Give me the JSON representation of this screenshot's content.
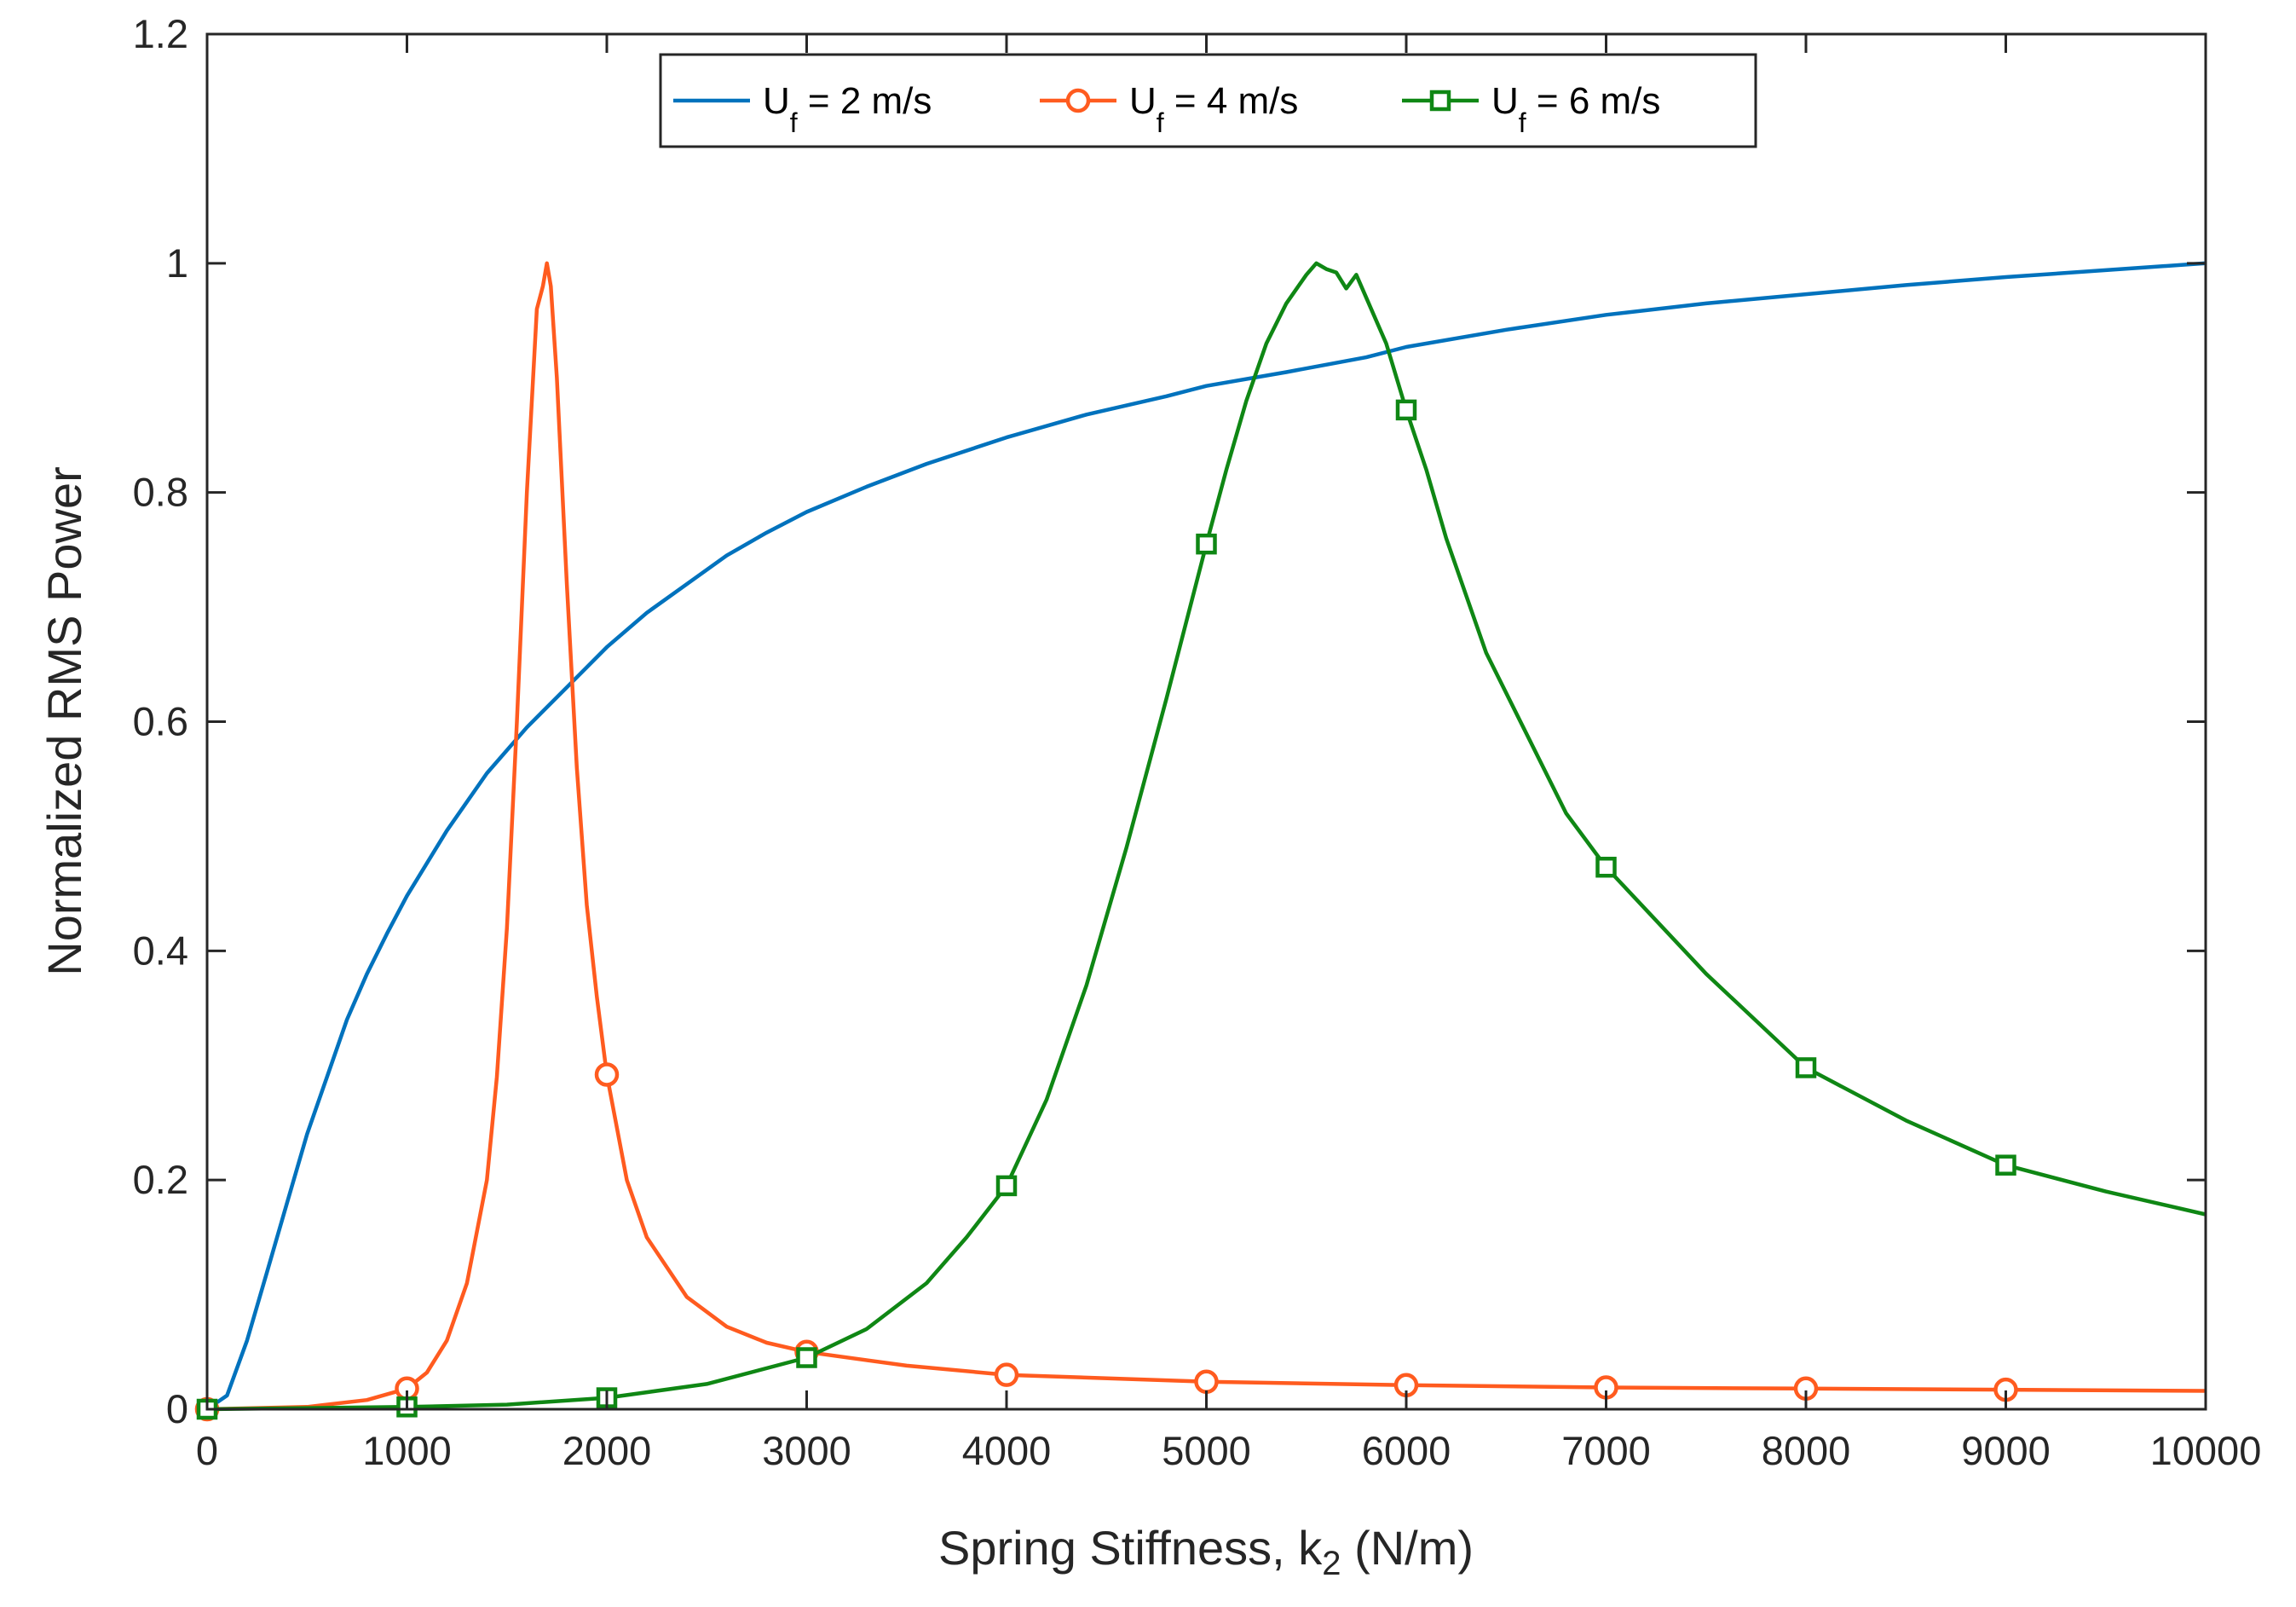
{
  "chart_data": {
    "type": "line",
    "title": "",
    "xlabel": "Spring Stiffness, k",
    "xlabel_sub": "2",
    "xlabel_tail": " (N/m)",
    "ylabel": "Normalized RMS Power",
    "xlim": [
      0,
      10000
    ],
    "ylim": [
      0,
      1.2
    ],
    "xticks": [
      0,
      1000,
      2000,
      3000,
      4000,
      5000,
      6000,
      7000,
      8000,
      9000,
      10000
    ],
    "xtick_labels": [
      "0",
      "1000",
      "2000",
      "3000",
      "4000",
      "5000",
      "6000",
      "7000",
      "8000",
      "9000",
      "10000"
    ],
    "yticks": [
      0,
      0.2,
      0.4,
      0.6,
      0.8,
      1.0,
      1.2
    ],
    "ytick_labels": [
      "0",
      "0.2",
      "0.4",
      "0.6",
      "0.8",
      "1",
      "1.2"
    ],
    "grid": false,
    "legend_position": "top-center",
    "series": [
      {
        "name": "U_f = 2 m/s",
        "legend_main": "U",
        "legend_sub": "f",
        "legend_tail": " = 2 m/s",
        "color": "#0072BD",
        "marker": "none",
        "x": [
          0,
          100,
          200,
          300,
          400,
          500,
          600,
          700,
          800,
          900,
          1000,
          1200,
          1400,
          1600,
          1800,
          2000,
          2200,
          2400,
          2600,
          2800,
          3000,
          3300,
          3600,
          4000,
          4400,
          4800,
          5000,
          5400,
          5800,
          6000,
          6500,
          7000,
          7500,
          8000,
          8500,
          9000,
          9500,
          10000
        ],
        "y": [
          0,
          0.012,
          0.06,
          0.12,
          0.18,
          0.24,
          0.29,
          0.34,
          0.38,
          0.415,
          0.448,
          0.505,
          0.555,
          0.595,
          0.63,
          0.665,
          0.695,
          0.72,
          0.745,
          0.765,
          0.783,
          0.805,
          0.825,
          0.848,
          0.868,
          0.884,
          0.893,
          0.905,
          0.918,
          0.927,
          0.942,
          0.955,
          0.965,
          0.973,
          0.981,
          0.988,
          0.994,
          1.0
        ]
      },
      {
        "name": "U_f = 4 m/s",
        "legend_main": "U",
        "legend_sub": "f",
        "legend_tail": " = 4 m/s",
        "color": "#FF5B1F",
        "marker": "circle",
        "x": [
          0,
          500,
          800,
          1000,
          1100,
          1200,
          1300,
          1400,
          1450,
          1500,
          1550,
          1600,
          1650,
          1680,
          1700,
          1720,
          1750,
          1800,
          1850,
          1900,
          1950,
          2000,
          2100,
          2200,
          2400,
          2600,
          2800,
          3000,
          3500,
          4000,
          5000,
          6000,
          7000,
          8000,
          9000,
          10000
        ],
        "y": [
          0,
          0.002,
          0.008,
          0.018,
          0.032,
          0.06,
          0.11,
          0.2,
          0.29,
          0.42,
          0.6,
          0.8,
          0.96,
          0.98,
          1.0,
          0.98,
          0.9,
          0.72,
          0.56,
          0.44,
          0.36,
          0.292,
          0.2,
          0.15,
          0.098,
          0.072,
          0.058,
          0.05,
          0.038,
          0.03,
          0.024,
          0.021,
          0.019,
          0.018,
          0.017,
          0.016
        ],
        "marker_x": [
          0,
          1000,
          2000,
          3000,
          4000,
          5000,
          6000,
          7000,
          8000,
          9000
        ],
        "marker_y": [
          0,
          0.018,
          0.292,
          0.05,
          0.03,
          0.024,
          0.021,
          0.019,
          0.018,
          0.017
        ]
      },
      {
        "name": "U_f = 6 m/s",
        "legend_main": "U",
        "legend_sub": "f",
        "legend_tail": " = 6 m/s",
        "color": "#0F8714",
        "marker": "square",
        "x": [
          0,
          1000,
          1500,
          2000,
          2500,
          3000,
          3300,
          3600,
          3800,
          4000,
          4200,
          4400,
          4600,
          4800,
          5000,
          5100,
          5200,
          5300,
          5400,
          5500,
          5550,
          5600,
          5650,
          5700,
          5750,
          5800,
          5900,
          6000,
          6100,
          6200,
          6400,
          6600,
          6800,
          7000,
          7500,
          8000,
          8500,
          9000,
          9500,
          10000
        ],
        "y": [
          0,
          0.002,
          0.004,
          0.01,
          0.022,
          0.045,
          0.07,
          0.11,
          0.15,
          0.195,
          0.27,
          0.37,
          0.49,
          0.62,
          0.755,
          0.82,
          0.88,
          0.93,
          0.965,
          0.99,
          1.0,
          0.995,
          0.992,
          0.978,
          0.99,
          0.97,
          0.93,
          0.872,
          0.82,
          0.76,
          0.66,
          0.59,
          0.52,
          0.473,
          0.38,
          0.298,
          0.252,
          0.213,
          0.19,
          0.17
        ],
        "marker_x": [
          0,
          1000,
          2000,
          3000,
          4000,
          5000,
          6000,
          7000,
          8000,
          9000
        ],
        "marker_y": [
          0,
          0.002,
          0.01,
          0.045,
          0.195,
          0.755,
          0.872,
          0.473,
          0.298,
          0.213
        ]
      }
    ]
  }
}
